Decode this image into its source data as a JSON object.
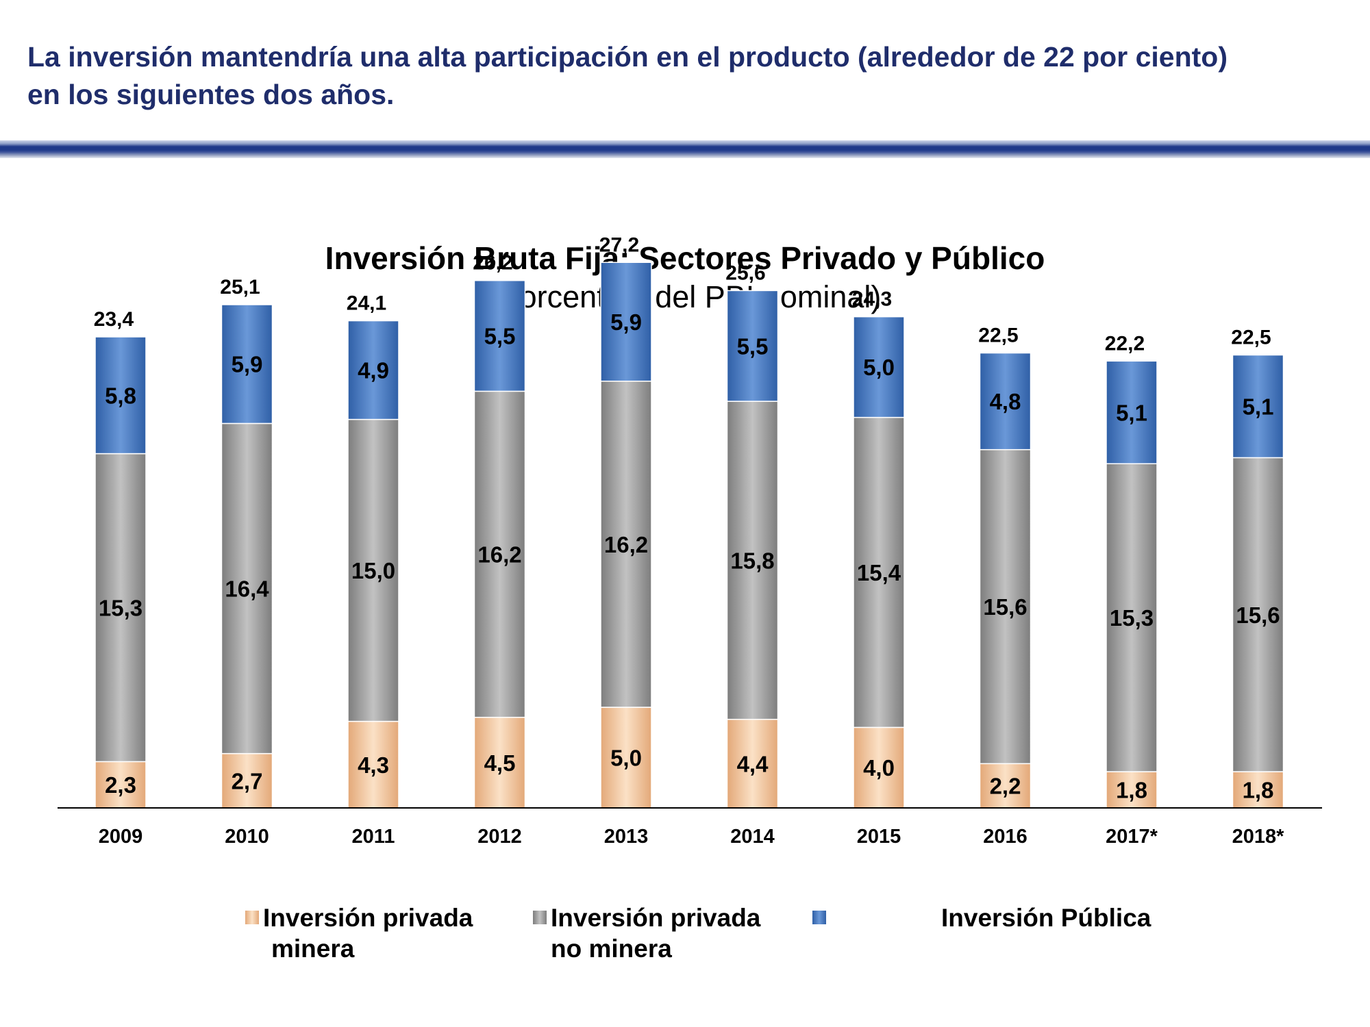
{
  "headline": {
    "line1": "La inversión mantendría una alta participación en el producto (alrededor de 22 por ciento)",
    "line2": "en los siguientes dos años."
  },
  "colors": {
    "headline": "#1f2d6b",
    "divider": "#1e3a8a",
    "mining": "#f5c9a0",
    "non_mining": "#a6a6a6",
    "public": "#4a7ec8"
  },
  "chart_data": {
    "type": "bar",
    "stacked": true,
    "title": "Inversión Bruta Fija: Sectores Privado y Público",
    "subtitle": "(Porcentaje del PBI nominal)",
    "categories": [
      "2009",
      "2010",
      "2011",
      "2012",
      "2013",
      "2014",
      "2015",
      "2016",
      "2017*",
      "2018*"
    ],
    "series": [
      {
        "name": "Inversión privada minera",
        "legend_line1": "Inversión privada",
        "legend_line2": "minera",
        "labels": [
          "2,3",
          "2,7",
          "4,3",
          "4,5",
          "5,0",
          "4,4",
          "4,0",
          "2,2",
          "1,8",
          "1,8"
        ],
        "values": [
          2.3,
          2.7,
          4.3,
          4.5,
          5.0,
          4.4,
          4.0,
          2.2,
          1.8,
          1.8
        ]
      },
      {
        "name": "Inversión privada no minera",
        "legend_line1": "Inversión privada",
        "legend_line2": "no minera",
        "labels": [
          "15,3",
          "16,4",
          "15,0",
          "16,2",
          "16,2",
          "15,8",
          "15,4",
          "15,6",
          "15,3",
          "15,6"
        ],
        "values": [
          15.3,
          16.4,
          15.0,
          16.2,
          16.2,
          15.8,
          15.4,
          15.6,
          15.3,
          15.6
        ]
      },
      {
        "name": "Inversión Pública",
        "legend_line1": "Inversión Pública",
        "legend_line2": "",
        "labels": [
          "5,8",
          "5,9",
          "4,9",
          "5,5",
          "5,9",
          "5,5",
          "5,0",
          "4,8",
          "5,1",
          "5,1"
        ],
        "values": [
          5.8,
          5.9,
          4.9,
          5.5,
          5.9,
          5.5,
          5.0,
          4.8,
          5.1,
          5.1
        ]
      }
    ],
    "totals": [
      "23,4",
      "25,1",
      "24,1",
      "26,2",
      "27,2",
      "25,6",
      "24,3",
      "22,5",
      "22,2",
      "22,5"
    ],
    "total_values": [
      23.4,
      25.1,
      24.1,
      26.2,
      27.2,
      25.6,
      24.3,
      22.5,
      22.2,
      22.5
    ],
    "ylim": [
      0,
      30
    ],
    "grid": false,
    "legend": "bottom"
  }
}
